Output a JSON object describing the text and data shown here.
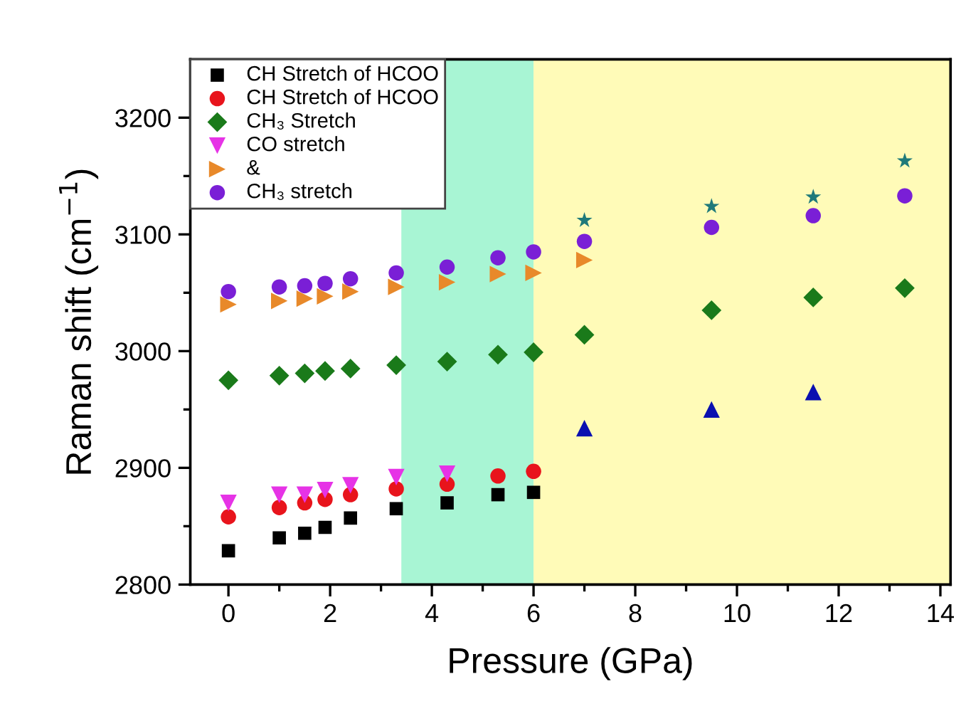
{
  "chart_data": {
    "type": "scatter",
    "xlabel": "Pressure (GPa)",
    "ylabel": "Raman shift (cm$^{−1}$)",
    "xlim": [
      -0.75,
      14.2
    ],
    "ylim": [
      2800,
      3250
    ],
    "xticks": [
      0,
      {
        "value": 1,
        "label": null
      },
      2,
      {
        "value": 3,
        "label": null
      },
      4,
      {
        "value": 5,
        "label": null
      },
      6,
      {
        "value": 7,
        "label": null
      },
      8,
      {
        "value": 9,
        "label": null
      },
      10,
      {
        "value": 11,
        "label": null
      },
      12,
      {
        "value": 13,
        "label": null
      },
      14
    ],
    "yticks": [
      2800,
      {
        "value": 2850,
        "label": null
      },
      2900,
      {
        "value": 2950,
        "label": null
      },
      3000,
      {
        "value": 3050,
        "label": null
      },
      3100,
      {
        "value": 3150,
        "label": null
      },
      3200
    ],
    "grid": false,
    "legend": "top left",
    "bands": [
      {
        "axis": "x",
        "from": 3.4,
        "to": 6.0,
        "color": "#a8f5d4"
      },
      {
        "axis": "x",
        "from": 6.0,
        "to": 14.2,
        "color": "#fffbb8"
      }
    ],
    "series": [
      {
        "name": "CH Stretch of HCOO",
        "color": "#000000",
        "marker": "square",
        "x": [
          0,
          1,
          1.5,
          1.9,
          2.4,
          3.3,
          4.3,
          5.3,
          6.0
        ],
        "values": [
          2829,
          2840,
          2844,
          2849,
          2857,
          2865,
          2870,
          2877,
          2879
        ]
      },
      {
        "name": "CH Stretch of HCOO",
        "color": "#e8141c",
        "marker": "circle",
        "x": [
          0,
          1,
          1.5,
          1.9,
          2.4,
          3.3,
          4.3,
          5.3,
          6.0
        ],
        "values": [
          2858,
          2866,
          2870,
          2873,
          2877,
          2882,
          2886,
          2893,
          2897
        ]
      },
      {
        "name": "CH₃ Stretch",
        "color": "#1a7a1a",
        "marker": "diamond",
        "x": [
          0,
          1,
          1.5,
          1.9,
          2.4,
          3.3,
          4.3,
          5.3,
          6.0,
          7.0,
          9.5,
          11.5,
          13.3
        ],
        "values": [
          2975,
          2979,
          2981,
          2983,
          2985,
          2988,
          2991,
          2997,
          2999,
          3014,
          3035,
          3046,
          3054
        ]
      },
      {
        "name": "CO stretch",
        "color": "#e633e6",
        "marker": "triangle_down",
        "x": [
          0,
          1,
          1.5,
          1.9,
          2.4,
          3.3,
          4.3
        ],
        "values": [
          2870,
          2877,
          2877,
          2881,
          2885,
          2892,
          2895
        ]
      },
      {
        "name": "&",
        "color": "#e8892a",
        "marker": "triangle_right",
        "x": [
          0,
          1,
          1.5,
          1.9,
          2.4,
          3.3,
          4.3,
          5.3,
          6.0,
          7.0
        ],
        "values": [
          3040,
          3043,
          3045,
          3047,
          3051,
          3055,
          3059,
          3066,
          3067,
          3078
        ]
      },
      {
        "name": "CH₃ stretch",
        "color": "#7a1fd6",
        "marker": "circle",
        "x": [
          0,
          1,
          1.5,
          1.9,
          2.4,
          3.3,
          4.3,
          5.3,
          6.0,
          7.0,
          9.5,
          11.5,
          13.3
        ],
        "values": [
          3051,
          3055,
          3056,
          3058,
          3062,
          3067,
          3072,
          3080,
          3085,
          3094,
          3106,
          3116,
          3133
        ]
      },
      {
        "color": "#1f7a7a",
        "marker": "star",
        "x": [
          7.0,
          9.5,
          11.5,
          13.3
        ],
        "values": [
          3112,
          3124,
          3132,
          3163
        ]
      },
      {
        "color": "#0a10b0",
        "marker": "triangle",
        "x": [
          7.0,
          9.5,
          11.5
        ],
        "values": [
          2934,
          2950,
          2965
        ]
      }
    ]
  }
}
